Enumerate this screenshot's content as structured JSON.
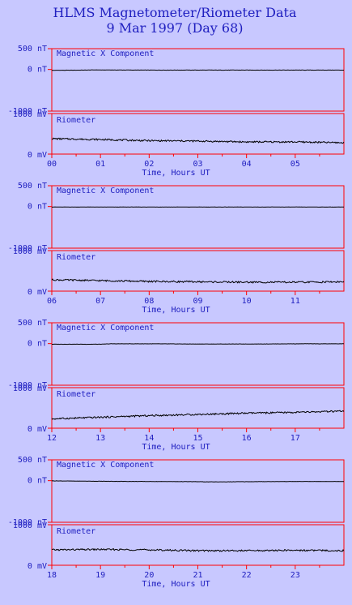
{
  "header": {
    "title_line1": "HLMS Magnetometer/Riometer Data",
    "title_line2": "9 Mar 1997 (Day 68)"
  },
  "colors": {
    "background": "#c8c8ff",
    "frame": "#ff0000",
    "text": "#2020c0",
    "trace": "#000000"
  },
  "chart_data": [
    {
      "type": "line",
      "panel_index": 0,
      "xlabel": "Time, Hours UT",
      "xlim": [
        0,
        6
      ],
      "x_ticks": [
        "00",
        "01",
        "02",
        "03",
        "04",
        "05"
      ],
      "magnetometer": {
        "label": "Magnetic X Component",
        "unit": "nT",
        "ylim": [
          -1000,
          500
        ],
        "y_ticks": [
          "500 nT",
          "0 nT",
          "-1000 nT"
        ],
        "x": [
          0,
          0.7,
          0.9,
          1.0,
          2,
          3,
          4,
          5,
          6
        ],
        "values": [
          -20,
          -15,
          -10,
          -12,
          -15,
          -15,
          -15,
          -15,
          -15
        ]
      },
      "riometer": {
        "label": "Riometer",
        "unit": "mV",
        "ylim": [
          0,
          1000
        ],
        "y_ticks": [
          "1000 mV",
          "0 mV"
        ],
        "x": [
          0,
          1,
          2,
          3,
          4,
          5,
          6
        ],
        "values": [
          380,
          360,
          330,
          320,
          300,
          300,
          280
        ]
      }
    },
    {
      "type": "line",
      "panel_index": 1,
      "xlabel": "Time, Hours UT",
      "xlim": [
        6,
        12
      ],
      "x_ticks": [
        "06",
        "07",
        "08",
        "09",
        "10",
        "11"
      ],
      "magnetometer": {
        "label": "Magnetic X Component",
        "unit": "nT",
        "ylim": [
          -1000,
          500
        ],
        "y_ticks": [
          "500 nT",
          "0 nT",
          "-1000 nT"
        ],
        "x": [
          6,
          7,
          8,
          9,
          10,
          11,
          12
        ],
        "values": [
          -12,
          -12,
          -12,
          -12,
          -12,
          -12,
          -12
        ]
      },
      "riometer": {
        "label": "Riometer",
        "unit": "mV",
        "ylim": [
          0,
          1000
        ],
        "y_ticks": [
          "1000 mV",
          "0 mV"
        ],
        "x": [
          6,
          7,
          8,
          9,
          10,
          11,
          12
        ],
        "values": [
          280,
          260,
          240,
          230,
          220,
          220,
          230
        ]
      }
    },
    {
      "type": "line",
      "panel_index": 2,
      "xlabel": "Time, Hours UT",
      "xlim": [
        12,
        18
      ],
      "x_ticks": [
        "12",
        "13",
        "14",
        "15",
        "16",
        "17"
      ],
      "magnetometer": {
        "label": "Magnetic X Component",
        "unit": "nT",
        "ylim": [
          -1000,
          500
        ],
        "y_ticks": [
          "500 nT",
          "0 nT",
          "-1000 nT"
        ],
        "x": [
          12,
          13,
          13.2,
          14,
          15,
          16,
          17,
          18
        ],
        "values": [
          -15,
          -15,
          -5,
          -5,
          -10,
          -10,
          -5,
          -5
        ]
      },
      "riometer": {
        "label": "Riometer",
        "unit": "mV",
        "ylim": [
          0,
          1000
        ],
        "y_ticks": [
          "1000 mV",
          "0 mV"
        ],
        "x": [
          12,
          13,
          14,
          15,
          16,
          17,
          18
        ],
        "values": [
          230,
          270,
          310,
          340,
          370,
          390,
          420
        ]
      }
    },
    {
      "type": "line",
      "panel_index": 3,
      "xlabel": "Time, Hours UT",
      "xlim": [
        18,
        24
      ],
      "x_ticks": [
        "18",
        "19",
        "20",
        "21",
        "22",
        "23"
      ],
      "magnetometer": {
        "label": "Magnetic X Component",
        "unit": "nT",
        "ylim": [
          -1000,
          500
        ],
        "y_ticks": [
          "500 nT",
          "0 nT",
          "-1000 nT"
        ],
        "x": [
          18,
          19,
          20,
          21,
          21.3,
          22,
          23,
          24
        ],
        "values": [
          -5,
          -15,
          -20,
          -25,
          -30,
          -25,
          -20,
          -20
        ]
      },
      "riometer": {
        "label": "Riometer",
        "unit": "mV",
        "ylim": [
          0,
          1000
        ],
        "y_ticks": [
          "1000 mV",
          "0 mV"
        ],
        "x": [
          18,
          19,
          20,
          21,
          22,
          23,
          24
        ],
        "values": [
          380,
          390,
          380,
          360,
          360,
          370,
          360
        ]
      }
    }
  ]
}
